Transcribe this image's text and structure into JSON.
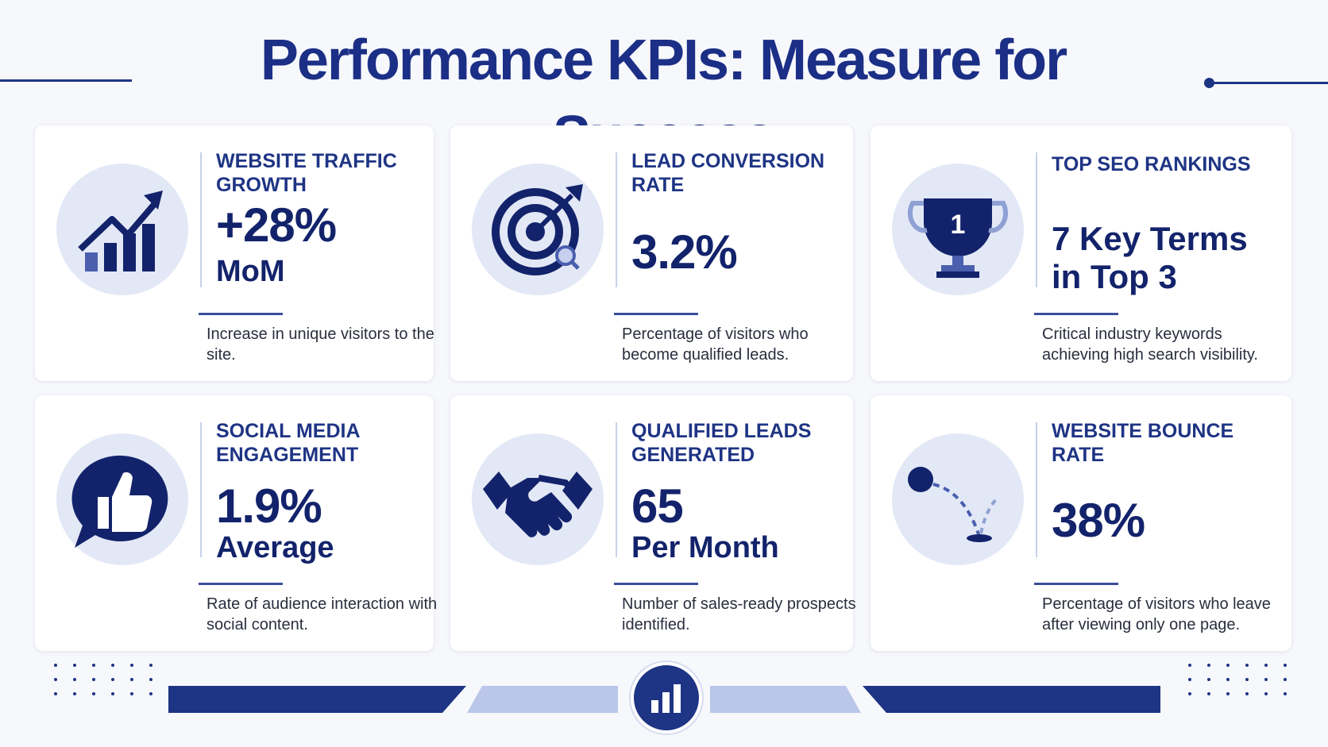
{
  "title": "Performance KPIs: Measure for Success",
  "colors": {
    "primary": "#1e3484",
    "accent_light": "#bac6ea",
    "circle_bg": "#e3e8f6"
  },
  "cards": [
    {
      "icon": "growth-chart-icon",
      "label": "WEBSITE TRAFFIC GROWTH",
      "value": "+28%",
      "unit": "MoM",
      "description": "Increase in unique visitors to the site."
    },
    {
      "icon": "target-icon",
      "label": "LEAD CONVERSION RATE",
      "value": "3.2%",
      "unit": "",
      "description": "Percentage of visitors who become qualified leads."
    },
    {
      "icon": "trophy-icon",
      "trophy_number": "1",
      "label": "TOP SEO RANKINGS",
      "value": "7 Key Terms",
      "unit": "in Top 3",
      "description": "Critical industry keywords achieving high search visibility."
    },
    {
      "icon": "thumbs-up-icon",
      "label": "SOCIAL MEDIA ENGAGEMENT",
      "value": "1.9%",
      "unit": "Average",
      "description": "Rate of audience interaction with social content."
    },
    {
      "icon": "handshake-icon",
      "label": "QUALIFIED LEADS GENERATED",
      "value": "65",
      "unit": "Per Month",
      "description": "Number of sales-ready prospects identified."
    },
    {
      "icon": "bounce-ball-icon",
      "label": "WEBSITE BOUNCE RATE",
      "value": "38%",
      "unit": "",
      "description": "Percentage of visitors who leave after viewing only one page."
    }
  ],
  "footer": {
    "icon": "bar-chart-icon"
  }
}
